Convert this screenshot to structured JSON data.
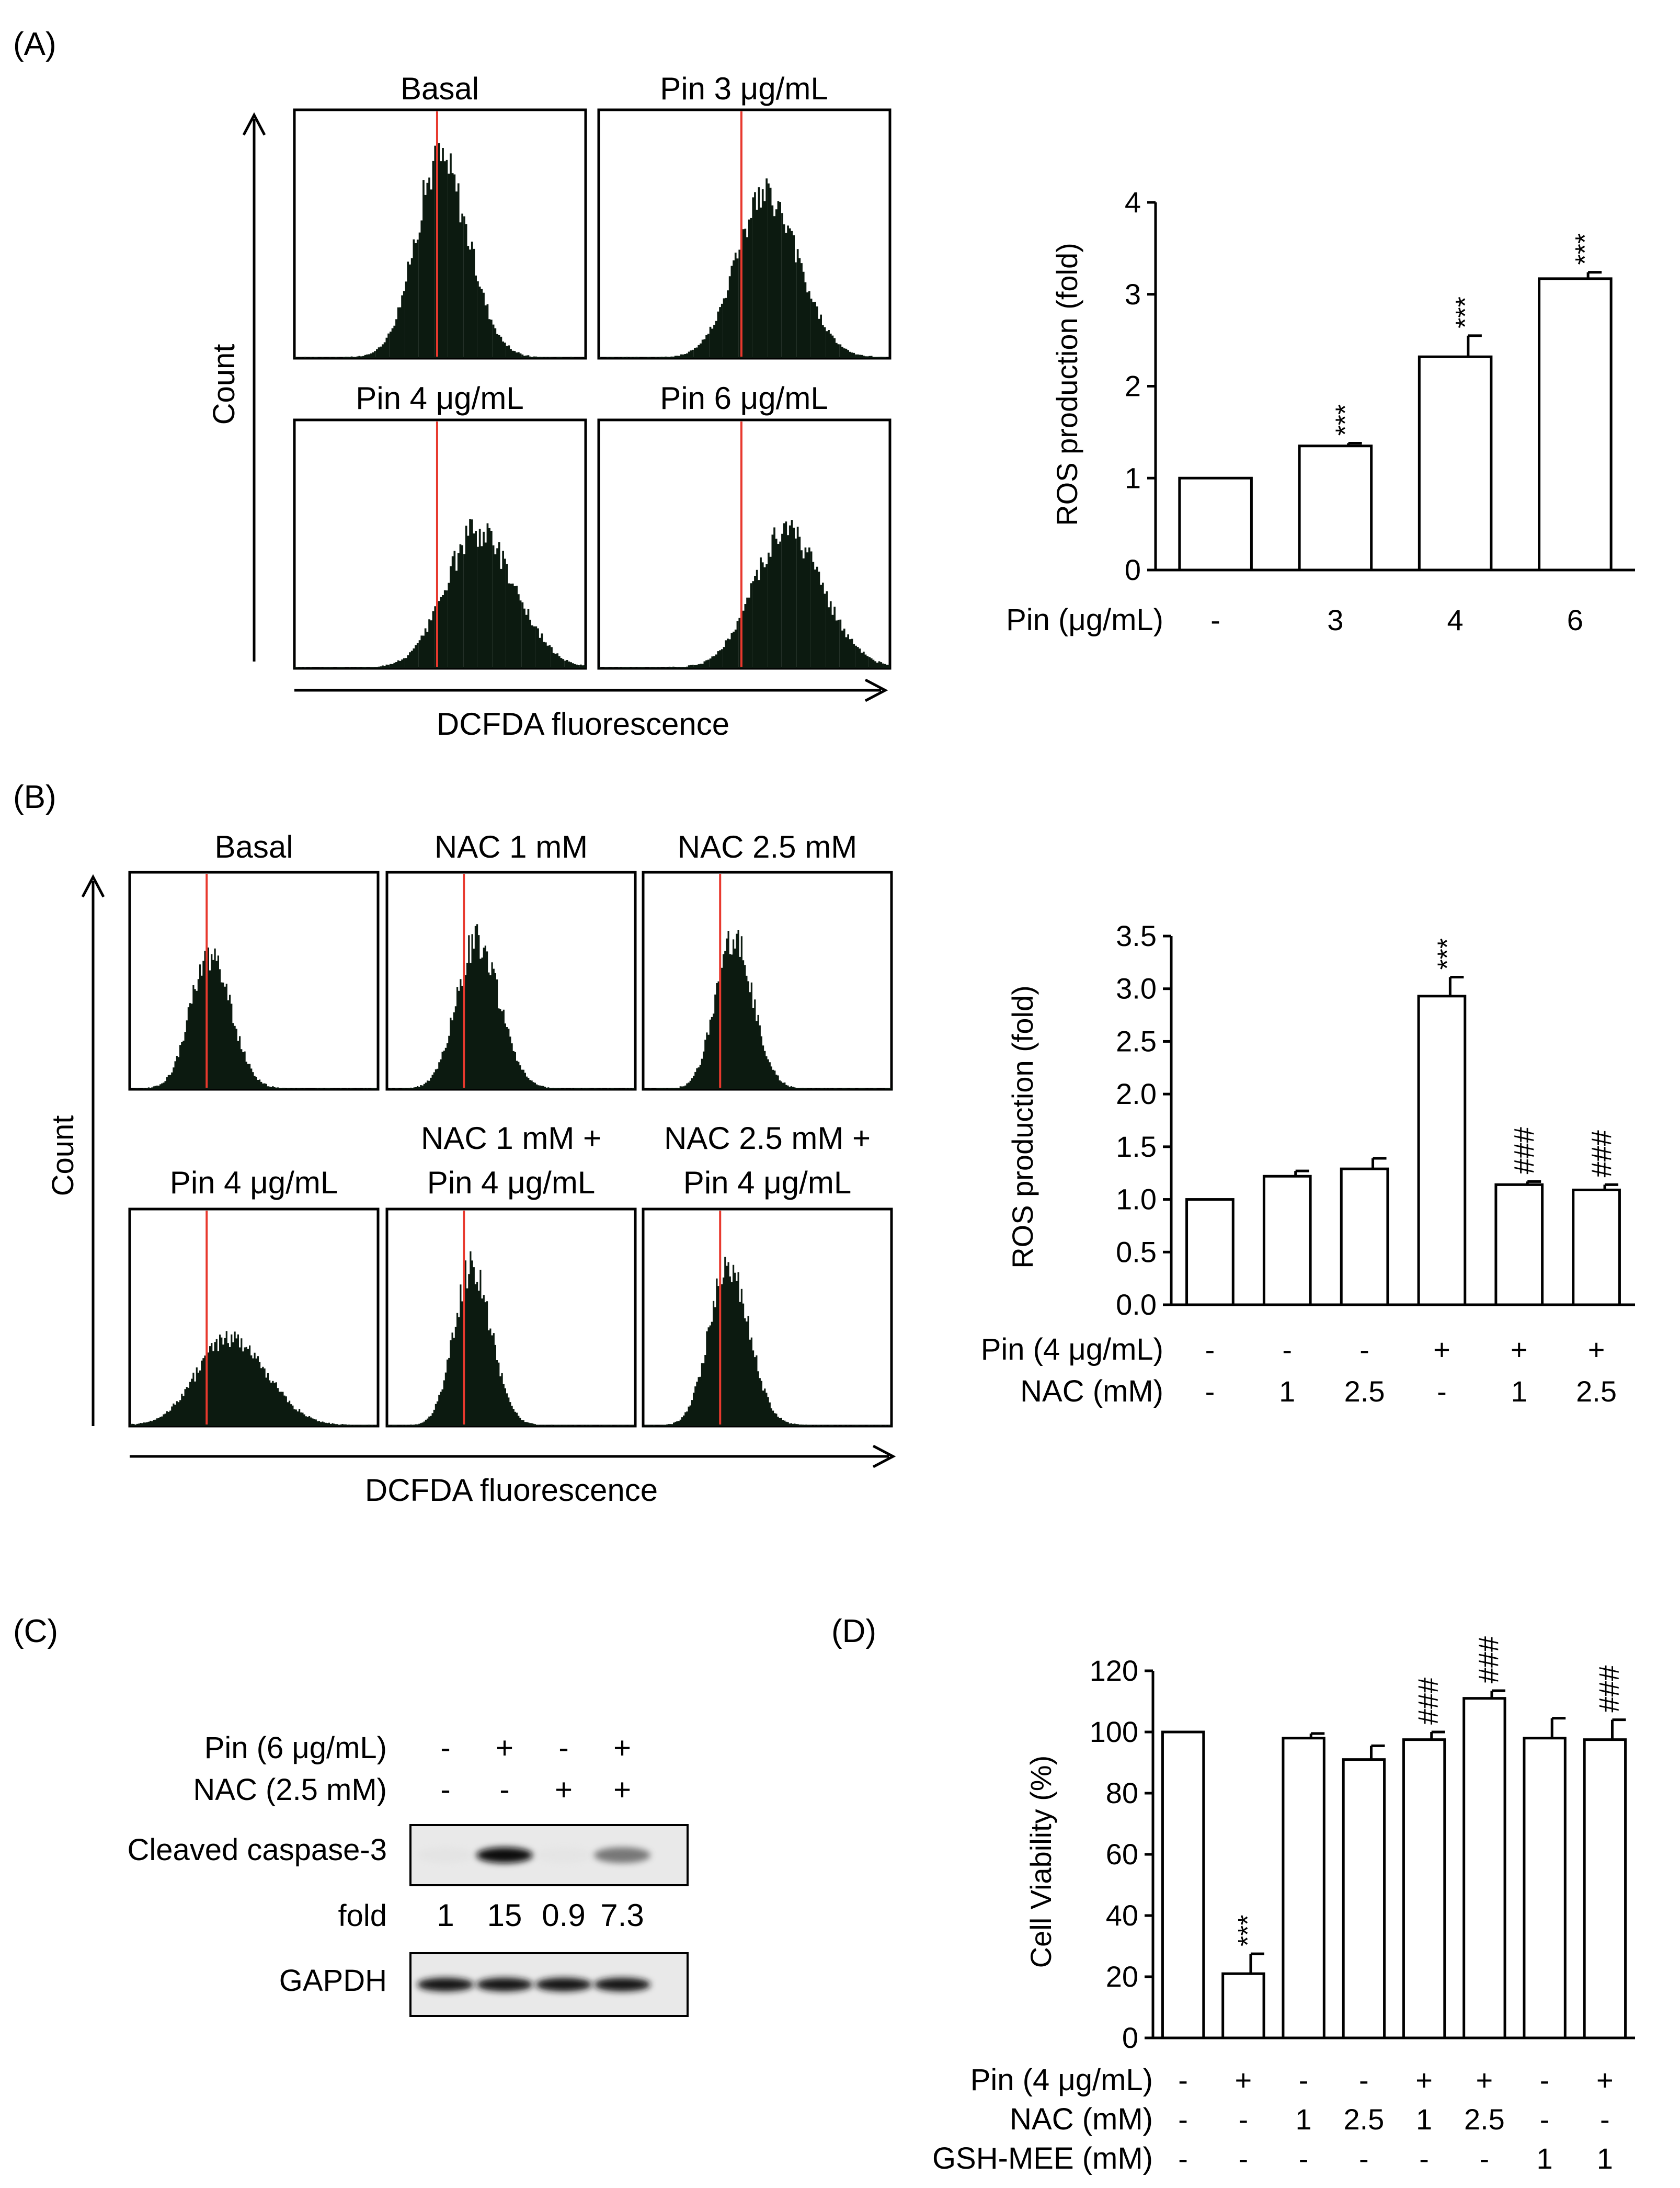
{
  "panels": {
    "A": {
      "label": "(A)",
      "flow": {
        "titles": [
          "Basal",
          "Pin 3 μg/mL",
          "Pin 4 μg/mL",
          "Pin 6 μg/mL"
        ],
        "peaks": [
          0.5,
          0.57,
          0.63,
          0.64
        ],
        "widths": [
          0.085,
          0.1,
          0.11,
          0.11
        ],
        "heights": [
          0.8,
          0.65,
          0.55,
          0.55
        ],
        "marker": 0.49,
        "xlabel": "DCFDA fluorescence",
        "ylabel": "Count"
      },
      "group_header": "Pin (μg/mL)"
    },
    "B": {
      "label": "(B)",
      "flow": {
        "titles": [
          "Basal",
          "NAC 1 mM",
          "NAC 2.5 mM",
          "Pin 4 μg/mL",
          "NAC 1 mM +|Pin 4 μg/mL",
          "NAC 2.5 mM +|Pin 4 μg/mL"
        ],
        "peaks": [
          0.32,
          0.36,
          0.36,
          0.4,
          0.34,
          0.34
        ],
        "widths": [
          0.075,
          0.08,
          0.07,
          0.13,
          0.07,
          0.075
        ],
        "heights": [
          0.62,
          0.68,
          0.7,
          0.4,
          0.72,
          0.72
        ],
        "marker": 0.31,
        "xlabel": "DCFDA fluorescence",
        "ylabel": "Count"
      },
      "row_headers": [
        "Pin (4 μg/mL)",
        "NAC (mM)"
      ]
    },
    "C": {
      "label": "(C)",
      "row_headers": [
        "Pin (6 μg/mL)",
        "NAC (2.5 mM)"
      ],
      "rows": [
        [
          "-",
          "+",
          "-",
          "+"
        ],
        [
          "-",
          "-",
          "+",
          "+"
        ]
      ],
      "bands": [
        {
          "name": "Cleaved caspase-3",
          "intensities": [
            0.05,
            0.95,
            0.04,
            0.55
          ]
        },
        {
          "name": "GAPDH",
          "intensities": [
            0.9,
            0.9,
            0.9,
            0.9
          ]
        }
      ],
      "fold_label": "fold",
      "fold_values": [
        "1",
        "15",
        "0.9",
        "7.3"
      ]
    },
    "D": {
      "label": "(D)",
      "row_headers": [
        "Pin (4 μg/mL)",
        "NAC (mM)",
        "GSH-MEE (mM)"
      ]
    }
  },
  "chart_data": [
    {
      "panel": "A",
      "type": "bar",
      "ylabel": "ROS production (fold)",
      "ylim": [
        0,
        4
      ],
      "yticks": [
        "0",
        "1",
        "2",
        "3",
        "4"
      ],
      "categories": [
        "-",
        "3",
        "4",
        "6"
      ],
      "values": [
        1.0,
        1.35,
        2.32,
        3.17
      ],
      "errors": [
        0,
        0.03,
        0.23,
        0.07
      ],
      "annotations": [
        "",
        "***",
        "***",
        "***"
      ]
    },
    {
      "panel": "B",
      "type": "bar",
      "ylabel": "ROS production (fold)",
      "ylim": [
        0,
        3.5
      ],
      "yticks": [
        "0.0",
        "0.5",
        "1.0",
        "1.5",
        "2.0",
        "2.5",
        "3.0",
        "3.5"
      ],
      "conditions": [
        [
          "-",
          "-",
          "-",
          "+",
          "+",
          "+"
        ],
        [
          "-",
          "1",
          "2.5",
          "-",
          "1",
          "2.5"
        ]
      ],
      "values": [
        1.0,
        1.22,
        1.29,
        2.93,
        1.14,
        1.09
      ],
      "errors": [
        0,
        0.05,
        0.1,
        0.18,
        0.03,
        0.05
      ],
      "annotations": [
        "",
        "",
        "",
        "***",
        "###",
        "###"
      ]
    },
    {
      "panel": "D",
      "type": "bar",
      "ylabel": "Cell Viability (%)",
      "ylim": [
        0,
        120
      ],
      "yticks": [
        "0",
        "20",
        "40",
        "60",
        "80",
        "100",
        "120"
      ],
      "conditions": [
        [
          "-",
          "+",
          "-",
          "-",
          "+",
          "+",
          "-",
          "+"
        ],
        [
          "-",
          "-",
          "1",
          "2.5",
          "1",
          "2.5",
          "-",
          "-"
        ],
        [
          "-",
          "-",
          "-",
          "-",
          "-",
          "-",
          "1",
          "1"
        ]
      ],
      "values": [
        100,
        21,
        98,
        91,
        97.5,
        111,
        98,
        97.5
      ],
      "errors": [
        0,
        6.5,
        1.5,
        4.5,
        2.5,
        2.5,
        6.5,
        6.5
      ],
      "annotations": [
        "",
        "***",
        "",
        "",
        "###",
        "###",
        "",
        "###"
      ]
    }
  ]
}
